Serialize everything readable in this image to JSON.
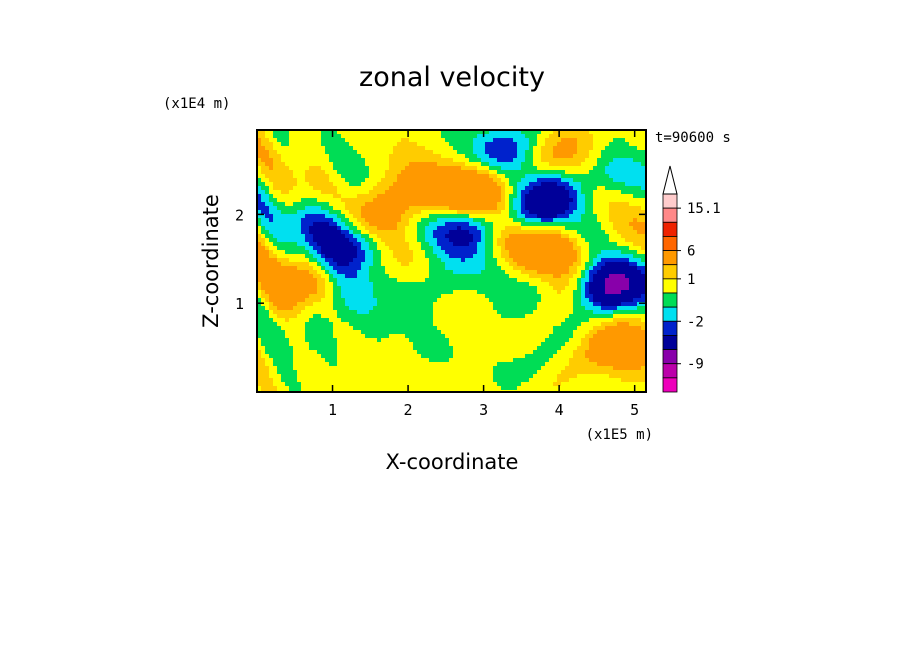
{
  "chart_data": {
    "type": "heatmap",
    "title": "zonal velocity",
    "xlabel": "X-coordinate",
    "ylabel": "Z-coordinate",
    "x_unit": "(x1E5 m)",
    "y_unit": "(x1E4 m)",
    "time_label": "t=90600 s",
    "xlim": [
      0,
      5.15
    ],
    "ylim": [
      0,
      2.95
    ],
    "x_ticks": [
      "1",
      "2",
      "3",
      "4",
      "5"
    ],
    "y_ticks": [
      "1",
      "2"
    ],
    "colorbar": {
      "labels": [
        "15.1",
        "6",
        "1",
        "-2",
        "-9"
      ],
      "levels": [
        {
          "lo": null,
          "hi": -12,
          "color": "#ee00bb"
        },
        {
          "lo": -12,
          "hi": -9,
          "color": "#bb00aa"
        },
        {
          "lo": -9,
          "hi": -6,
          "color": "#8800aa"
        },
        {
          "lo": -6,
          "hi": -3,
          "color": "#000099"
        },
        {
          "lo": -3,
          "hi": -2,
          "color": "#0022cc"
        },
        {
          "lo": -2,
          "hi": -1,
          "color": "#00e0f0"
        },
        {
          "lo": -1,
          "hi": 0,
          "color": "#00dd55"
        },
        {
          "lo": 0,
          "hi": 1,
          "color": "#ffff00"
        },
        {
          "lo": 1,
          "hi": 2,
          "color": "#ffcc00"
        },
        {
          "lo": 2,
          "hi": 6,
          "color": "#ff9900"
        },
        {
          "lo": 6,
          "hi": 9,
          "color": "#ff6600"
        },
        {
          "lo": 9,
          "hi": 12,
          "color": "#ee2200"
        },
        {
          "lo": 12,
          "hi": 15.1,
          "color": "#ff8888"
        },
        {
          "lo": 15.1,
          "hi": null,
          "color": "#ffcccc"
        }
      ],
      "overflow_top_color": "#ffffff"
    },
    "features": [
      {
        "x": 2.93,
        "z": 1.85,
        "value": -7
      },
      {
        "x": 4.7,
        "z": 1.2,
        "value": -7
      },
      {
        "x": 1.25,
        "z": 1.65,
        "value": -4
      },
      {
        "x": 4.0,
        "z": 2.2,
        "value": -4
      },
      {
        "x": 3.3,
        "z": 2.75,
        "value": -3
      },
      {
        "x": 4.6,
        "z": 2.5,
        "value": -3
      },
      {
        "x": 0.95,
        "z": 1.95,
        "value": -3
      },
      {
        "x": 2.9,
        "z": 2.25,
        "value": 5
      },
      {
        "x": 3.1,
        "z": 1.8,
        "value": 4
      },
      {
        "x": 2.05,
        "z": 2.25,
        "value": 3
      },
      {
        "x": 1.6,
        "z": 2.0,
        "value": 3
      },
      {
        "x": 4.0,
        "z": 1.6,
        "value": 4
      },
      {
        "x": 4.35,
        "z": 2.65,
        "value": 3
      },
      {
        "x": 4.85,
        "z": 0.5,
        "value": 4
      },
      {
        "x": 0.5,
        "z": 1.2,
        "value": 3
      },
      {
        "x": 1.5,
        "z": 0.8,
        "value": -0.6
      },
      {
        "x": 0.6,
        "z": 0.6,
        "value": -0.7
      },
      {
        "x": 2.3,
        "z": 0.5,
        "value": -0.5
      },
      {
        "x": 3.3,
        "z": 0.3,
        "value": -0.6
      },
      {
        "x": 3.4,
        "z": 1.0,
        "value": -0.4
      },
      {
        "x": 1.1,
        "z": 1.05,
        "value": -1.5
      },
      {
        "x": 2.3,
        "z": 1.2,
        "value": -1.5
      },
      {
        "x": 2.7,
        "z": 1.5,
        "value": -0.5
      },
      {
        "x": 3.6,
        "z": 2.0,
        "value": -1.5
      }
    ]
  }
}
